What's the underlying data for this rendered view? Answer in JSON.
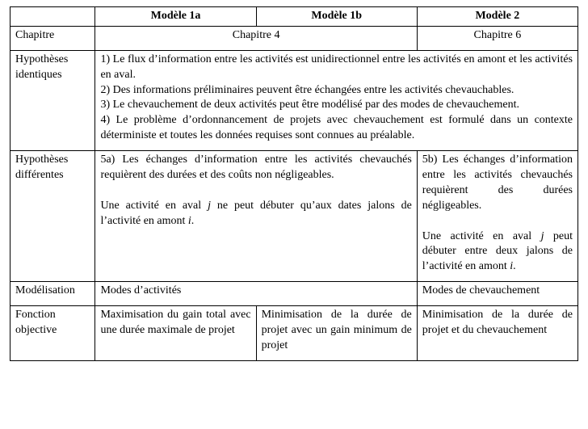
{
  "table": {
    "border_color": "#000000",
    "background_color": "#ffffff",
    "font_family": "Times New Roman",
    "base_fontsize_pt": 11,
    "columns": {
      "label_width_pct": 15,
      "model_width_pct": 28.33
    },
    "header": {
      "blank": "",
      "col_a": "Modèle 1a",
      "col_b": "Modèle 1b",
      "col_c": "Modèle 2"
    },
    "rows": {
      "chapitre": {
        "label": "Chapitre",
        "chap4": "Chapitre 4",
        "chap6": "Chapitre 6"
      },
      "hyp_id": {
        "label": "Hypothèses identiques",
        "text": "1) Le flux d’information entre les activités est unidirectionnel entre les activités en amont et les activités en aval.\n2) Des informations préliminaires peuvent être échangées entre les activités chevauchables.\n3) Le chevauchement de deux activités peut être modélisé par des modes de chevauchement.\n4) Le problème d’ordonnancement de projets avec chevauchement est formulé dans un contexte déterministe et toutes les données requises sont connues au préalable."
      },
      "hyp_diff": {
        "label": "Hypothèses différentes",
        "left_p1_a": "5a) Les échanges d’information entre les activités chevauchés requièrent des durées et des coûts non négligeables.",
        "left_p2_a": "Une activité en aval ",
        "left_p2_j": "j",
        "left_p2_b": " ne peut débuter qu’aux dates jalons de l’activité en amont ",
        "left_p2_i": "i",
        "left_p2_c": ".",
        "right_p1_a": "5b) Les échanges d’information entre les activités chevauchés requièrent des durées négligeables.",
        "right_p2_a": "Une activité en aval ",
        "right_p2_j": "j",
        "right_p2_b": " peut débuter entre deux jalons de l’activité en amont ",
        "right_p2_i": "i",
        "right_p2_c": "."
      },
      "modelisation": {
        "label": "Modélisation",
        "left": "Modes d’activités",
        "right": "Modes de chevauchement"
      },
      "fonction": {
        "label": "Fonction objective",
        "a": "Maximisation du gain total avec une durée maximale de projet",
        "b": "Minimisation de la durée de projet avec un gain minimum de projet",
        "c": "Minimisation de la durée de projet et du chevauchement"
      }
    }
  }
}
